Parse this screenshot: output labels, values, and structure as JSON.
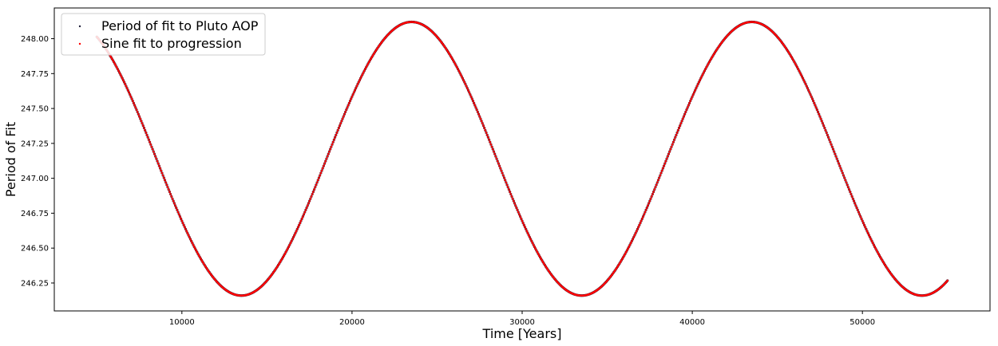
{
  "chart_data": {
    "type": "scatter",
    "title": "",
    "xlabel": "Time [Years]",
    "ylabel": "Period of Fit",
    "xlim": [
      2500,
      57500
    ],
    "ylim": [
      246.05,
      248.22
    ],
    "xticks": [
      10000,
      20000,
      30000,
      40000,
      50000
    ],
    "xtick_labels": [
      "10000",
      "20000",
      "30000",
      "40000",
      "50000"
    ],
    "yticks": [
      246.25,
      246.5,
      246.75,
      247.0,
      247.25,
      247.5,
      247.75,
      248.0
    ],
    "ytick_labels": [
      "246.25",
      "246.50",
      "246.75",
      "247.00",
      "247.25",
      "247.50",
      "247.75",
      "248.00"
    ],
    "grid": false,
    "legend_position": "top-left",
    "series": [
      {
        "name": "Period of fit to Pluto AOP",
        "color": "#1f1f3a",
        "x_range": [
          5000,
          55000
        ],
        "model": {
          "mean": 247.14,
          "amplitude": 0.98,
          "period": 20000,
          "peak_x": 23500
        }
      },
      {
        "name": "Sine fit to progression",
        "color": "#ff0000",
        "x_range": [
          5000,
          55000
        ],
        "model": {
          "mean": 247.14,
          "amplitude": 0.98,
          "period": 20000,
          "peak_x": 23500
        }
      }
    ]
  }
}
